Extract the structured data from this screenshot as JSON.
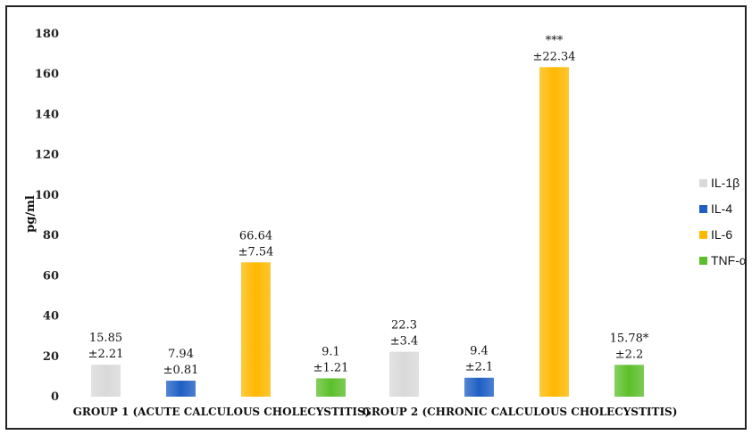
{
  "chart_data": {
    "type": "bar",
    "ylabel": "pg/ml",
    "ylim": [
      0,
      180
    ],
    "yticks": [
      0,
      20,
      40,
      60,
      80,
      100,
      120,
      140,
      160,
      180
    ],
    "grid": false,
    "legend_position": "right",
    "categories": [
      "GROUP 1 (ACUTE CALCULOUS CHOLECYSTITIS)",
      "GROUP 2 (CHRONIC CALCULOUS CHOLECYSTITIS)"
    ],
    "series": [
      {
        "name": "IL-1β",
        "color": "#d9d9d9",
        "values": [
          15.85,
          22.3
        ],
        "labels": [
          [
            "15.85",
            "±2.21"
          ],
          [
            "22.3",
            "±3.4"
          ]
        ]
      },
      {
        "name": "IL-4",
        "color": "#1f5fc4",
        "values": [
          7.94,
          9.4
        ],
        "labels": [
          [
            "7.94",
            "±0.81"
          ],
          [
            "9.4",
            "±2.1"
          ]
        ]
      },
      {
        "name": "IL-6",
        "color": "#ffb800",
        "values": [
          66.64,
          163.5
        ],
        "labels": [
          [
            "66.64",
            "±7.54"
          ],
          [
            "***",
            "±22.34"
          ]
        ]
      },
      {
        "name": "TNF-α",
        "color": "#5cbf2a",
        "values": [
          9.1,
          15.78
        ],
        "labels": [
          [
            "9.1",
            "±1.21"
          ],
          [
            "15.78*",
            "±2.2"
          ]
        ]
      }
    ]
  }
}
